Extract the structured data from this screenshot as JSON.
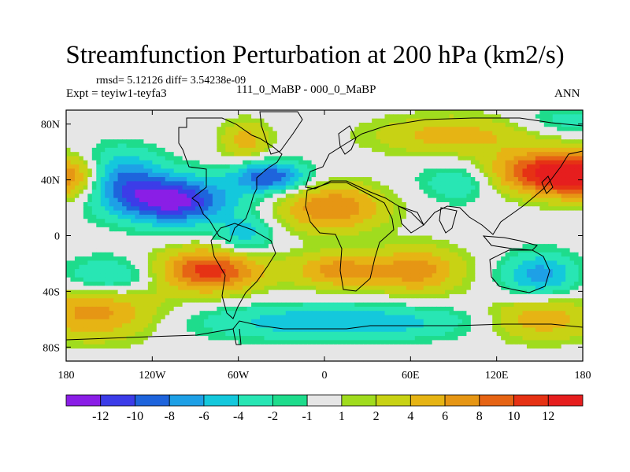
{
  "header": {
    "title": "Streamfunction Perturbation at 200 hPa (km2/s)",
    "stats": "rmsd= 5.12126 diff= 3.54238e-09",
    "experiment": "Expt = teyiw1-teyfa3",
    "comparison": "111_0_MaBP - 000_0_MaBP",
    "season": "ANN"
  },
  "chart_data": {
    "type": "heatmap",
    "title": "Streamfunction Perturbation at 200 hPa (km2/s)",
    "units": "km2/s",
    "x_range": [
      -180,
      180
    ],
    "y_range": [
      -90,
      90
    ],
    "x_ticks": [
      {
        "value": -180,
        "label": "180"
      },
      {
        "value": -120,
        "label": "120W"
      },
      {
        "value": -60,
        "label": "60W"
      },
      {
        "value": 0,
        "label": "0"
      },
      {
        "value": 60,
        "label": "60E"
      },
      {
        "value": 120,
        "label": "120E"
      },
      {
        "value": 180,
        "label": "180"
      }
    ],
    "y_ticks": [
      {
        "value": 80,
        "label": "80N"
      },
      {
        "value": 40,
        "label": "40N"
      },
      {
        "value": 0,
        "label": "0"
      },
      {
        "value": -40,
        "label": "40S"
      },
      {
        "value": -80,
        "label": "80S"
      }
    ],
    "contour_levels": [
      -12,
      -10,
      -8,
      -6,
      -4,
      -2,
      -1,
      1,
      2,
      4,
      6,
      8,
      10,
      12
    ],
    "colorbar_colors": [
      "#8a1ee6",
      "#3c3ce8",
      "#1e64dc",
      "#1ea0e6",
      "#14c8dc",
      "#28e6b4",
      "#1edc8c",
      "#e6e6e6",
      "#a0dc1e",
      "#c8d214",
      "#e6b414",
      "#e69614",
      "#e66414",
      "#e63214",
      "#e61e1e"
    ],
    "features": [
      {
        "name": "low NE Pacific / N America",
        "lon": -105,
        "lat": 25,
        "value": -13,
        "sx": 28,
        "sy": 12
      },
      {
        "name": "low N Pacific",
        "lon": -145,
        "lat": 42,
        "value": -8,
        "sx": 22,
        "sy": 14
      },
      {
        "name": "low N Atlantic",
        "lon": -38,
        "lat": 42,
        "value": -10,
        "sx": 18,
        "sy": 8
      },
      {
        "name": "low S America",
        "lon": -55,
        "lat": 0,
        "value": -5,
        "sx": 14,
        "sy": 10
      },
      {
        "name": "low Australia",
        "lon": 150,
        "lat": -28,
        "value": -7,
        "sx": 18,
        "sy": 11
      },
      {
        "name": "low E Asia",
        "lon": 95,
        "lat": 38,
        "value": -4,
        "sx": 20,
        "sy": 10
      },
      {
        "name": "low S Pacific",
        "lon": -150,
        "lat": -30,
        "value": -5,
        "sx": 24,
        "sy": 10
      },
      {
        "name": "low Southern Ocean",
        "lon": 10,
        "lat": -62,
        "value": -6,
        "sx": 70,
        "sy": 9
      },
      {
        "name": "low Arctic Pacific",
        "lon": 170,
        "lat": 82,
        "value": -3,
        "sx": 24,
        "sy": 7
      },
      {
        "name": "high NE Pacific",
        "lon": -178,
        "lat": 42,
        "value": 10,
        "sx": 18,
        "sy": 11
      },
      {
        "name": "high NE Pacific wrap",
        "lon": 182,
        "lat": 42,
        "value": 10,
        "sx": 18,
        "sy": 11
      },
      {
        "name": "high N Pacific Asia",
        "lon": 150,
        "lat": 45,
        "value": 11,
        "sx": 26,
        "sy": 11
      },
      {
        "name": "high Greenland",
        "lon": -55,
        "lat": 68,
        "value": 5,
        "sx": 12,
        "sy": 10
      },
      {
        "name": "high Europe Africa",
        "lon": 5,
        "lat": 20,
        "value": 8,
        "sx": 26,
        "sy": 12
      },
      {
        "name": "high S America",
        "lon": -80,
        "lat": -25,
        "value": 11,
        "sx": 26,
        "sy": 11
      },
      {
        "name": "high S Atlantic",
        "lon": 10,
        "lat": -25,
        "value": 7,
        "sx": 22,
        "sy": 9
      },
      {
        "name": "high S Indian Ocean",
        "lon": 65,
        "lat": -25,
        "value": 7,
        "sx": 22,
        "sy": 12
      },
      {
        "name": "high Southern Ocean W",
        "lon": -160,
        "lat": -55,
        "value": 7,
        "sx": 32,
        "sy": 14
      },
      {
        "name": "high Southern Ocean E",
        "lon": 150,
        "lat": -60,
        "value": 6,
        "sx": 28,
        "sy": 11
      },
      {
        "name": "high Arctic",
        "lon": 90,
        "lat": 72,
        "value": 5,
        "sx": 40,
        "sy": 10
      }
    ]
  }
}
